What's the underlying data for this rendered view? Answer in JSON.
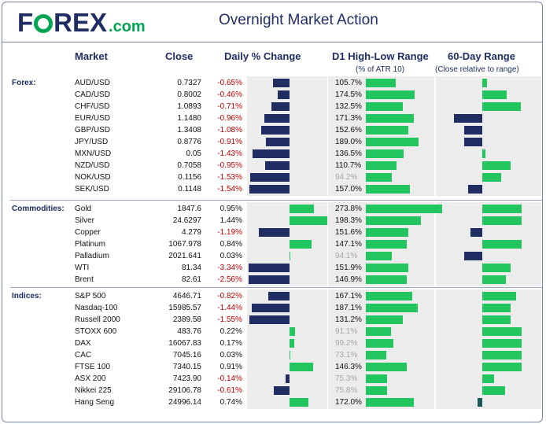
{
  "header": {
    "logo_text_1": "F",
    "logo_text_2": "REX",
    "logo_dotcom": ".com",
    "title": "Overnight Market Action"
  },
  "columns": {
    "market": "Market",
    "close": "Close",
    "daily": "Daily % Change",
    "d1": "D1 High-Low Range",
    "d1_sub": "(% of ATR 10)",
    "sixty": "60-Day Range",
    "sixty_sub": "(Close relative to range)"
  },
  "colors": {
    "brand_navy": "#1f2d63",
    "brand_green": "#00a651",
    "bar_green": "#22c55e",
    "negative_text": "#c00000",
    "panel_bg": "#ececec"
  },
  "sections": [
    {
      "label": "Forex:",
      "rows": [
        {
          "name": "AUD/USD",
          "close": "0.7327",
          "change": "-0.65%",
          "change_value": -0.65,
          "atr": "105.7%",
          "atr_value": 105.7,
          "atr_dim": false,
          "range_value": 0.11
        },
        {
          "name": "CAD/USD",
          "close": "0.8002",
          "change": "-0.46%",
          "change_value": -0.46,
          "atr": "174.5%",
          "atr_value": 174.5,
          "atr_dim": false,
          "range_value": 0.61
        },
        {
          "name": "CHF/USD",
          "close": "1.0893",
          "change": "-0.71%",
          "change_value": -0.71,
          "atr": "132.5%",
          "atr_value": 132.5,
          "atr_dim": false,
          "range_value": 0.98
        },
        {
          "name": "EUR/USD",
          "close": "1.1480",
          "change": "-0.96%",
          "change_value": -0.96,
          "atr": "171.3%",
          "atr_value": 171.3,
          "atr_dim": false,
          "range_value": -0.73
        },
        {
          "name": "GBP/USD",
          "close": "1.3408",
          "change": "-1.08%",
          "change_value": -1.08,
          "atr": "152.6%",
          "atr_value": 152.6,
          "atr_dim": false,
          "range_value": -0.47
        },
        {
          "name": "JPY/USD",
          "close": "0.8776",
          "change": "-0.91%",
          "change_value": -0.91,
          "atr": "189.0%",
          "atr_value": 189.0,
          "atr_dim": false,
          "range_value": -0.47
        },
        {
          "name": "MXN/USD",
          "close": "0.05",
          "change": "-1.43%",
          "change_value": -1.43,
          "atr": "136.5%",
          "atr_value": 136.5,
          "atr_dim": false,
          "range_value": 0.05
        },
        {
          "name": "NZD/USD",
          "close": "0.7058",
          "change": "-0.95%",
          "change_value": -0.95,
          "atr": "110.7%",
          "atr_value": 110.7,
          "atr_dim": false,
          "range_value": 0.72
        },
        {
          "name": "NOK/USD",
          "close": "0.1156",
          "change": "-1.53%",
          "change_value": -1.53,
          "atr": "94.2%",
          "atr_value": 94.2,
          "atr_dim": true,
          "range_value": 0.47
        },
        {
          "name": "SEK/USD",
          "close": "0.1148",
          "change": "-1.54%",
          "change_value": -1.54,
          "atr": "157.0%",
          "atr_value": 157.0,
          "atr_dim": false,
          "range_value": -0.37
        }
      ]
    },
    {
      "label": "Commodities:",
      "rows": [
        {
          "name": "Gold",
          "close": "1847.6",
          "change": "0.95%",
          "change_value": 0.95,
          "atr": "273.8%",
          "atr_value": 273.8,
          "atr_dim": false,
          "range_value": 1.0
        },
        {
          "name": "Silver",
          "close": "24.6297",
          "change": "1.44%",
          "change_value": 1.44,
          "atr": "198.3%",
          "atr_value": 198.3,
          "atr_dim": false,
          "range_value": 1.0
        },
        {
          "name": "Copper",
          "close": "4.279",
          "change": "-1.19%",
          "change_value": -1.19,
          "atr": "151.6%",
          "atr_value": 151.6,
          "atr_dim": false,
          "range_value": -0.3
        },
        {
          "name": "Platinum",
          "close": "1067.978",
          "change": "0.84%",
          "change_value": 0.84,
          "atr": "147.1%",
          "atr_value": 147.1,
          "atr_dim": false,
          "range_value": 1.0
        },
        {
          "name": "Palladium",
          "close": "2021.641",
          "change": "0.03%",
          "change_value": 0.03,
          "atr": "94.1%",
          "atr_value": 94.1,
          "atr_dim": true,
          "range_value": -0.47
        },
        {
          "name": "WTI",
          "close": "81.34",
          "change": "-3.34%",
          "change_value": -3.34,
          "atr": "151.9%",
          "atr_value": 151.9,
          "atr_dim": false,
          "range_value": 0.72
        },
        {
          "name": "Brent",
          "close": "82.61",
          "change": "-2.56%",
          "change_value": -2.56,
          "atr": "146.9%",
          "atr_value": 146.9,
          "atr_dim": false,
          "range_value": 0.59
        }
      ]
    },
    {
      "label": "Indices:",
      "rows": [
        {
          "name": "S&P 500",
          "close": "4646.71",
          "change": "-0.82%",
          "change_value": -0.82,
          "atr": "167.1%",
          "atr_value": 167.1,
          "atr_dim": false,
          "range_value": 0.86
        },
        {
          "name": "Nasdaq-100",
          "close": "15985.57",
          "change": "-1.44%",
          "change_value": -1.44,
          "atr": "187.1%",
          "atr_value": 187.1,
          "atr_dim": false,
          "range_value": 0.72
        },
        {
          "name": "Russell 2000",
          "close": "2389.58",
          "change": "-1.55%",
          "change_value": -1.55,
          "atr": "131.2%",
          "atr_value": 131.2,
          "atr_dim": false,
          "range_value": 0.72
        },
        {
          "name": "STOXX 600",
          "close": "483.76",
          "change": "0.22%",
          "change_value": 0.22,
          "atr": "91.1%",
          "atr_value": 91.1,
          "atr_dim": true,
          "range_value": 1.0
        },
        {
          "name": "DAX",
          "close": "16067.83",
          "change": "0.17%",
          "change_value": 0.17,
          "atr": "99.2%",
          "atr_value": 99.2,
          "atr_dim": true,
          "range_value": 1.0
        },
        {
          "name": "CAC",
          "close": "7045.16",
          "change": "0.03%",
          "change_value": 0.03,
          "atr": "73.1%",
          "atr_value": 73.1,
          "atr_dim": true,
          "range_value": 1.0
        },
        {
          "name": "FTSE 100",
          "close": "7340.15",
          "change": "0.91%",
          "change_value": 0.91,
          "atr": "146.3%",
          "atr_value": 146.3,
          "atr_dim": false,
          "range_value": 1.0
        },
        {
          "name": "ASX 200",
          "close": "7423.90",
          "change": "-0.14%",
          "change_value": -0.14,
          "atr": "75.3%",
          "atr_value": 75.3,
          "atr_dim": true,
          "range_value": 0.3
        },
        {
          "name": "Nikkei 225",
          "close": "29106.78",
          "change": "-0.61%",
          "change_value": -0.61,
          "atr": "75.8%",
          "atr_value": 75.8,
          "atr_dim": true,
          "range_value": 0.58
        },
        {
          "name": "Hang Seng",
          "close": "24996.14",
          "change": "0.74%",
          "change_value": 0.74,
          "atr": "172.0%",
          "atr_value": 172.0,
          "atr_dim": false,
          "range_value": -0.12
        }
      ]
    }
  ]
}
